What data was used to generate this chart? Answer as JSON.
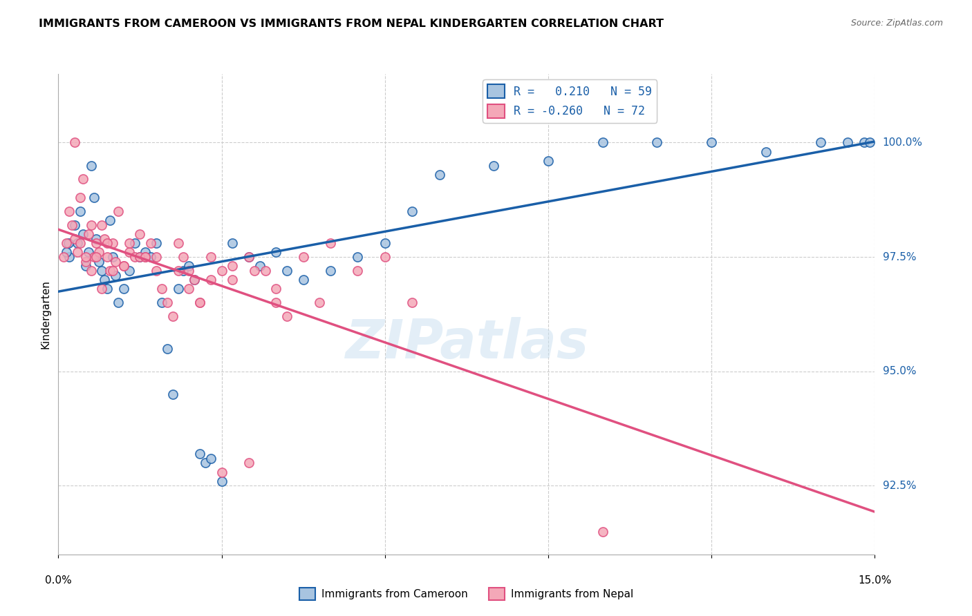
{
  "title": "IMMIGRANTS FROM CAMEROON VS IMMIGRANTS FROM NEPAL KINDERGARTEN CORRELATION CHART",
  "source": "Source: ZipAtlas.com",
  "ylabel": "Kindergarten",
  "ytick_values": [
    92.5,
    95.0,
    97.5,
    100.0
  ],
  "xlim": [
    0.0,
    15.0
  ],
  "ylim": [
    91.0,
    101.5
  ],
  "color_cameroon": "#a8c4e0",
  "color_nepal": "#f4a8b8",
  "color_line_cameroon": "#1a5fa8",
  "color_line_nepal": "#e05080",
  "cameroon_x": [
    0.2,
    0.3,
    0.35,
    0.4,
    0.45,
    0.5,
    0.55,
    0.6,
    0.65,
    0.7,
    0.75,
    0.8,
    0.85,
    0.9,
    0.95,
    1.0,
    1.05,
    1.1,
    1.2,
    1.3,
    1.4,
    1.5,
    1.6,
    1.7,
    1.8,
    1.9,
    2.0,
    2.1,
    2.2,
    2.3,
    2.4,
    2.5,
    2.6,
    2.7,
    2.8,
    3.0,
    3.2,
    3.5,
    3.7,
    4.0,
    4.2,
    4.5,
    5.0,
    5.5,
    6.0,
    6.5,
    7.0,
    8.0,
    9.0,
    10.0,
    11.0,
    12.0,
    13.0,
    14.0,
    14.5,
    14.8,
    14.9,
    0.15,
    0.18
  ],
  "cameroon_y": [
    97.5,
    98.2,
    97.8,
    98.5,
    98.0,
    97.3,
    97.6,
    99.5,
    98.8,
    97.9,
    97.4,
    97.2,
    97.0,
    96.8,
    98.3,
    97.5,
    97.1,
    96.5,
    96.8,
    97.2,
    97.8,
    97.5,
    97.6,
    97.5,
    97.8,
    96.5,
    95.5,
    94.5,
    96.8,
    97.2,
    97.3,
    97.0,
    93.2,
    93.0,
    93.1,
    92.6,
    97.8,
    97.5,
    97.3,
    97.6,
    97.2,
    97.0,
    97.2,
    97.5,
    97.8,
    98.5,
    99.3,
    99.5,
    99.6,
    100.0,
    100.0,
    100.0,
    99.8,
    100.0,
    100.0,
    100.0,
    100.0,
    97.6,
    97.8
  ],
  "nepal_x": [
    0.1,
    0.15,
    0.2,
    0.25,
    0.3,
    0.35,
    0.4,
    0.45,
    0.5,
    0.55,
    0.6,
    0.65,
    0.7,
    0.75,
    0.8,
    0.85,
    0.9,
    0.95,
    1.0,
    1.05,
    1.1,
    1.2,
    1.3,
    1.4,
    1.5,
    1.6,
    1.7,
    1.8,
    1.9,
    2.0,
    2.1,
    2.2,
    2.3,
    2.4,
    2.5,
    2.6,
    2.8,
    3.0,
    3.2,
    3.5,
    3.8,
    4.0,
    4.2,
    4.5,
    5.0,
    5.5,
    6.0,
    6.5,
    4.0,
    2.8,
    3.2,
    3.6,
    1.8,
    2.2,
    2.6,
    1.2,
    1.5,
    0.9,
    0.6,
    0.4,
    0.3,
    0.8,
    1.0,
    0.5,
    3.5,
    3.0,
    2.4,
    1.6,
    0.7,
    1.3,
    10.0,
    4.8
  ],
  "nepal_y": [
    97.5,
    97.8,
    98.5,
    98.2,
    97.9,
    97.6,
    98.8,
    99.2,
    97.4,
    98.0,
    97.2,
    97.5,
    97.8,
    97.6,
    98.2,
    97.9,
    97.5,
    97.2,
    97.8,
    97.4,
    98.5,
    97.3,
    97.6,
    97.5,
    98.0,
    97.5,
    97.8,
    97.2,
    96.8,
    96.5,
    96.2,
    97.2,
    97.5,
    96.8,
    97.0,
    96.5,
    97.0,
    97.2,
    97.3,
    97.5,
    97.2,
    96.5,
    96.2,
    97.5,
    97.8,
    97.2,
    97.5,
    96.5,
    96.8,
    97.5,
    97.0,
    97.2,
    97.5,
    97.8,
    96.5,
    97.3,
    97.5,
    97.8,
    98.2,
    97.8,
    100.0,
    96.8,
    97.2,
    97.5,
    93.0,
    92.8,
    97.2,
    97.5,
    97.5,
    97.8,
    91.5,
    96.5
  ]
}
